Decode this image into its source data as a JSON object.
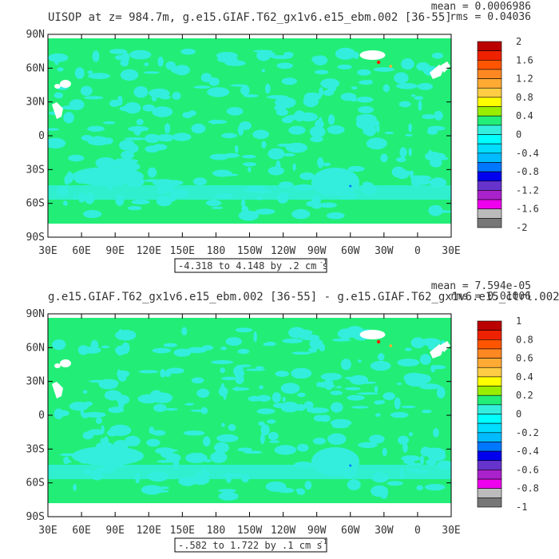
{
  "chart_data": [
    {
      "type": "heatmap",
      "title": "UISOP at z= 984.7m, g.e15.GIAF.T62_gx1v6.e15_ebm.002 [36-55]",
      "stats": {
        "mean": "mean = 0.0006986",
        "rms": "rms = 0.04036"
      },
      "x_tick_labels": [
        "30E",
        "60E",
        "90E",
        "120E",
        "150E",
        "180",
        "150W",
        "120W",
        "90W",
        "60W",
        "30W",
        "0",
        "30E"
      ],
      "y_tick_labels": [
        "90N",
        "60N",
        "30N",
        "0",
        "30S",
        "60S",
        "90S"
      ],
      "colorbar_labels": [
        "2",
        "1.6",
        "1.2",
        "0.8",
        "0.4",
        "0",
        "-0.4",
        "-0.8",
        "-1.2",
        "-1.6",
        "-2"
      ],
      "range_label": "-4.318 to 4.148 by .2 cm s",
      "range_unit_exponent": "-1",
      "colors": {
        "ocean": "#22ee77",
        "cyan": "#33eedd",
        "land": "#ffffff",
        "colorbar": [
          "#bb0000",
          "#ee2200",
          "#ff5500",
          "#ff8822",
          "#ffaa33",
          "#ffcc44",
          "#ffff00",
          "#99ee00",
          "#22ee77",
          "#33eedd",
          "#00ffff",
          "#00ddff",
          "#00bbff",
          "#0077ff",
          "#0000ee",
          "#6633cc",
          "#aa22cc",
          "#ee00ee",
          "#bbbbbb",
          "#777777"
        ]
      }
    },
    {
      "type": "heatmap",
      "title": "g.e15.GIAF.T62_gx1v6.e15_ebm.002 [36-55] - g.e15.GIAF.T62_gx1v6.e15_ctrl.002",
      "stats": {
        "mean": "mean = 7.594e-05",
        "rms": "rms = 0.01006"
      },
      "x_tick_labels": [
        "30E",
        "60E",
        "90E",
        "120E",
        "150E",
        "180",
        "150W",
        "120W",
        "90W",
        "60W",
        "30W",
        "0",
        "30E"
      ],
      "y_tick_labels": [
        "90N",
        "60N",
        "30N",
        "0",
        "30S",
        "60S",
        "90S"
      ],
      "colorbar_labels": [
        "1",
        "0.8",
        "0.6",
        "0.4",
        "0.2",
        "0",
        "-0.2",
        "-0.4",
        "-0.6",
        "-0.8",
        "-1"
      ],
      "range_label": "-.582 to 1.722 by .1 cm s",
      "range_unit_exponent": "-1",
      "colors": {
        "ocean": "#22ee77",
        "cyan": "#33eedd",
        "land": "#ffffff",
        "colorbar": [
          "#bb0000",
          "#ee2200",
          "#ff5500",
          "#ff8822",
          "#ffaa33",
          "#ffcc44",
          "#ffff00",
          "#99ee00",
          "#22ee77",
          "#33eedd",
          "#00ffff",
          "#00ddff",
          "#00bbff",
          "#0077ff",
          "#0000ee",
          "#6633cc",
          "#aa22cc",
          "#ee00ee",
          "#bbbbbb",
          "#777777"
        ]
      }
    }
  ]
}
